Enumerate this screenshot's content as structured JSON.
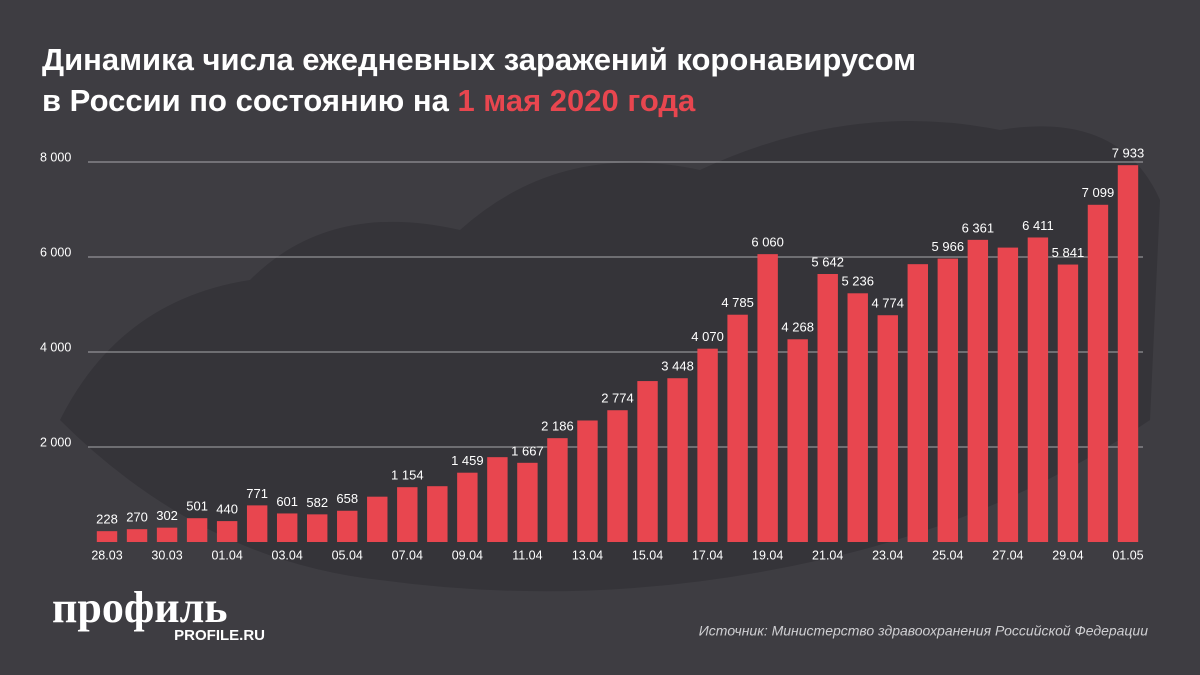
{
  "chart_data": {
    "type": "bar",
    "title": "Динамика числа ежедневных заражений коронавирусом",
    "title_line2": "в России по состоянию на",
    "title_highlight": "1 мая 2020 года",
    "source": "Источник: Министерство здравоохранения Российской Федерации",
    "logo": "профиль",
    "logo_sub": "PROFILE.RU",
    "categories": [
      "28.03",
      null,
      "30.03",
      null,
      "01.04",
      null,
      "03.04",
      null,
      "05.04",
      null,
      "07.04",
      null,
      "09.04",
      null,
      "11.04",
      null,
      "13.04",
      null,
      "15.04",
      null,
      "17.04",
      null,
      "19.04",
      null,
      "21.04",
      null,
      "23.04",
      null,
      "25.04",
      null,
      "27.04",
      null,
      "29.04",
      null,
      "01.05"
    ],
    "values": [
      228,
      270,
      302,
      501,
      440,
      771,
      601,
      582,
      658,
      954,
      1154,
      1175,
      1459,
      1786,
      1667,
      2186,
      2558,
      2774,
      3388,
      3448,
      4070,
      4785,
      6060,
      4268,
      5642,
      5236,
      4774,
      5849,
      5966,
      6361,
      6198,
      6411,
      5841,
      7099,
      7933
    ],
    "value_labels": [
      "228",
      "270",
      "302",
      "501",
      "440",
      "771",
      "601",
      "582",
      "658",
      null,
      "1 154",
      null,
      "1 459",
      null,
      "1 667",
      "2 186",
      null,
      "2 774",
      null,
      "3 448",
      "4 070",
      "4 785",
      "6 060",
      "4 268",
      "5 642",
      "5 236",
      "4 774",
      null,
      "5 966",
      "6 361",
      null,
      "6 411",
      "5 841",
      "7 099",
      "7 933"
    ],
    "color": "#e8464f",
    "ylim": [
      0,
      8000
    ],
    "yticks": [
      {
        "value": 2000,
        "label": "2 000"
      },
      {
        "value": 4000,
        "label": "4 000"
      },
      {
        "value": 6000,
        "label": "6 000"
      },
      {
        "value": 8000,
        "label": "8 000"
      }
    ],
    "grid": true
  }
}
